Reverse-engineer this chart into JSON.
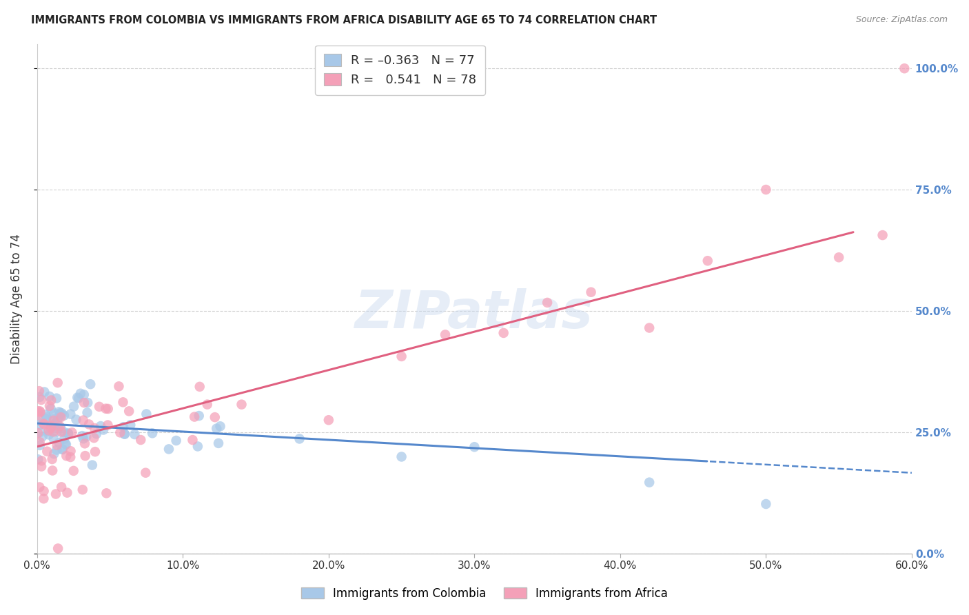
{
  "title": "IMMIGRANTS FROM COLOMBIA VS IMMIGRANTS FROM AFRICA DISABILITY AGE 65 TO 74 CORRELATION CHART",
  "source": "Source: ZipAtlas.com",
  "ylabel": "Disability Age 65 to 74",
  "xmin": 0.0,
  "xmax": 0.6,
  "ymin": 0.0,
  "ymax": 1.05,
  "color_colombia": "#a8c8e8",
  "color_africa": "#f4a0b8",
  "color_line_colombia": "#5588cc",
  "color_line_africa": "#e06080",
  "color_right_axis": "#5588cc",
  "R_colombia": -0.363,
  "R_africa": 0.541,
  "N_colombia": 77,
  "N_africa": 78,
  "watermark": "ZIPatlas",
  "grid_color": "#cccccc",
  "background_color": "#ffffff"
}
